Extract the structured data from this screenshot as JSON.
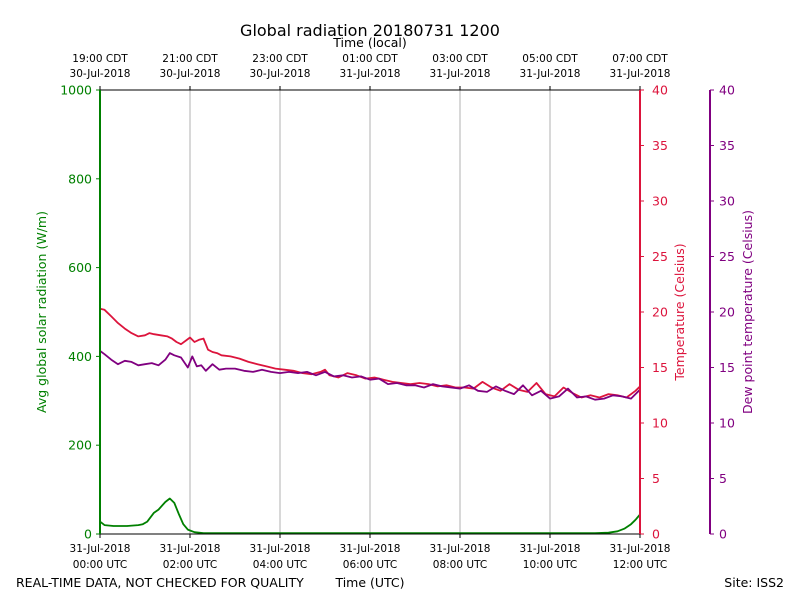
{
  "chart_data": {
    "type": "line",
    "title": "Global radiation 20180731 1200",
    "xlabel_bottom": "Time (UTC)",
    "xlabel_top": "Time (local)",
    "x_range_hours_utc": [
      0,
      12
    ],
    "bottom_ticks": [
      {
        "hour": 0,
        "date": "31-Jul-2018",
        "time": "00:00 UTC"
      },
      {
        "hour": 2,
        "date": "31-Jul-2018",
        "time": "02:00 UTC"
      },
      {
        "hour": 4,
        "date": "31-Jul-2018",
        "time": "04:00 UTC"
      },
      {
        "hour": 6,
        "date": "31-Jul-2018",
        "time": "06:00 UTC"
      },
      {
        "hour": 8,
        "date": "31-Jul-2018",
        "time": "08:00 UTC"
      },
      {
        "hour": 10,
        "date": "31-Jul-2018",
        "time": "10:00 UTC"
      },
      {
        "hour": 12,
        "date": "31-Jul-2018",
        "time": "12:00 UTC"
      }
    ],
    "top_ticks": [
      {
        "hour": 0,
        "time": "19:00 CDT",
        "date": "30-Jul-2018"
      },
      {
        "hour": 2,
        "time": "21:00 CDT",
        "date": "30-Jul-2018"
      },
      {
        "hour": 4,
        "time": "23:00 CDT",
        "date": "30-Jul-2018"
      },
      {
        "hour": 6,
        "time": "01:00 CDT",
        "date": "31-Jul-2018"
      },
      {
        "hour": 8,
        "time": "03:00 CDT",
        "date": "31-Jul-2018"
      },
      {
        "hour": 10,
        "time": "05:00 CDT",
        "date": "31-Jul-2018"
      },
      {
        "hour": 12,
        "time": "07:00 CDT",
        "date": "31-Jul-2018"
      }
    ],
    "axes": {
      "radiation": {
        "label": "Avg global solar radiation (W/m)",
        "range": [
          0,
          1000
        ],
        "ticks": [
          0,
          200,
          400,
          600,
          800,
          1000
        ],
        "color": "#008000"
      },
      "temperature": {
        "label": "Temperature (Celsius)",
        "range": [
          0,
          40
        ],
        "ticks": [
          0,
          5,
          10,
          15,
          20,
          25,
          30,
          35,
          40
        ],
        "color": "#dc143c"
      },
      "dewpoint": {
        "label": "Dew point temperature (Celsius)",
        "range": [
          0,
          40
        ],
        "ticks": [
          0,
          5,
          10,
          15,
          20,
          25,
          30,
          35,
          40
        ],
        "color": "#800080"
      }
    },
    "series": [
      {
        "name": "Avg global solar radiation",
        "axis": "radiation",
        "color": "#008000",
        "x": [
          0,
          0.1,
          0.3,
          0.6,
          0.85,
          0.95,
          1.05,
          1.2,
          1.3,
          1.45,
          1.55,
          1.65,
          1.75,
          1.85,
          1.95,
          2.1,
          2.3,
          3,
          4,
          5,
          6,
          7,
          8,
          9,
          10,
          11,
          11.3,
          11.5,
          11.65,
          11.8,
          11.9,
          12
        ],
        "values": [
          28,
          20,
          18,
          18,
          20,
          22,
          28,
          48,
          55,
          72,
          80,
          70,
          45,
          22,
          10,
          4,
          2,
          2,
          2,
          2,
          2,
          2,
          2,
          2,
          2,
          2,
          3,
          6,
          12,
          22,
          32,
          44
        ]
      },
      {
        "name": "Temperature",
        "axis": "temperature",
        "color": "#dc143c",
        "x": [
          0,
          0.1,
          0.25,
          0.4,
          0.55,
          0.7,
          0.85,
          1.0,
          1.1,
          1.2,
          1.35,
          1.5,
          1.6,
          1.7,
          1.8,
          1.9,
          2.0,
          2.1,
          2.2,
          2.3,
          2.4,
          2.5,
          2.6,
          2.7,
          2.9,
          3.1,
          3.3,
          3.5,
          3.7,
          3.9,
          4.1,
          4.3,
          4.5,
          4.7,
          4.9,
          5.0,
          5.1,
          5.3,
          5.5,
          5.7,
          5.9,
          6.1,
          6.3,
          6.5,
          6.7,
          6.9,
          7.1,
          7.3,
          7.5,
          7.7,
          7.9,
          8.1,
          8.3,
          8.5,
          8.7,
          8.9,
          9.1,
          9.3,
          9.5,
          9.7,
          9.9,
          10.1,
          10.3,
          10.5,
          10.7,
          10.9,
          11.1,
          11.3,
          11.5,
          11.7,
          11.9,
          12.0
        ],
        "values": [
          20.3,
          20.2,
          19.6,
          19.0,
          18.5,
          18.1,
          17.8,
          17.9,
          18.1,
          18.0,
          17.9,
          17.8,
          17.6,
          17.3,
          17.1,
          17.4,
          17.7,
          17.3,
          17.5,
          17.6,
          16.6,
          16.4,
          16.3,
          16.1,
          16.0,
          15.8,
          15.5,
          15.3,
          15.1,
          14.9,
          14.8,
          14.7,
          14.5,
          14.4,
          14.6,
          14.8,
          14.3,
          14.1,
          14.5,
          14.3,
          14.0,
          14.1,
          13.9,
          13.7,
          13.6,
          13.5,
          13.6,
          13.5,
          13.3,
          13.4,
          13.2,
          13.2,
          13.1,
          13.7,
          13.2,
          12.9,
          13.5,
          13.0,
          12.8,
          13.6,
          12.6,
          12.4,
          13.2,
          12.7,
          12.3,
          12.5,
          12.3,
          12.6,
          12.5,
          12.3,
          12.9,
          13.3
        ]
      },
      {
        "name": "Dew point temperature",
        "axis": "dewpoint",
        "color": "#800080",
        "x": [
          0,
          0.1,
          0.25,
          0.4,
          0.55,
          0.7,
          0.85,
          1.0,
          1.15,
          1.3,
          1.45,
          1.55,
          1.65,
          1.8,
          1.95,
          2.05,
          2.15,
          2.25,
          2.35,
          2.5,
          2.65,
          2.8,
          3.0,
          3.2,
          3.4,
          3.6,
          3.8,
          4.0,
          4.2,
          4.4,
          4.6,
          4.8,
          5.0,
          5.2,
          5.4,
          5.6,
          5.8,
          6.0,
          6.2,
          6.4,
          6.6,
          6.8,
          7.0,
          7.2,
          7.4,
          7.6,
          7.8,
          8.0,
          8.2,
          8.4,
          8.6,
          8.8,
          9.0,
          9.2,
          9.4,
          9.6,
          9.8,
          10.0,
          10.2,
          10.4,
          10.6,
          10.8,
          11.0,
          11.2,
          11.4,
          11.6,
          11.8,
          12.0
        ],
        "values": [
          16.5,
          16.2,
          15.7,
          15.3,
          15.6,
          15.5,
          15.2,
          15.3,
          15.4,
          15.2,
          15.7,
          16.3,
          16.1,
          15.9,
          15.0,
          16.0,
          15.1,
          15.2,
          14.7,
          15.3,
          14.8,
          14.9,
          14.9,
          14.7,
          14.6,
          14.8,
          14.6,
          14.5,
          14.6,
          14.5,
          14.6,
          14.3,
          14.6,
          14.2,
          14.3,
          14.1,
          14.2,
          13.9,
          14.0,
          13.5,
          13.6,
          13.4,
          13.4,
          13.2,
          13.5,
          13.3,
          13.2,
          13.1,
          13.4,
          12.9,
          12.8,
          13.3,
          12.9,
          12.6,
          13.4,
          12.5,
          12.9,
          12.2,
          12.4,
          13.1,
          12.3,
          12.4,
          12.1,
          12.2,
          12.5,
          12.4,
          12.2,
          13.0
        ]
      }
    ]
  },
  "footer": {
    "disclaimer": "REAL-TIME DATA, NOT CHECKED FOR QUALITY",
    "site": "Site: ISS2"
  }
}
